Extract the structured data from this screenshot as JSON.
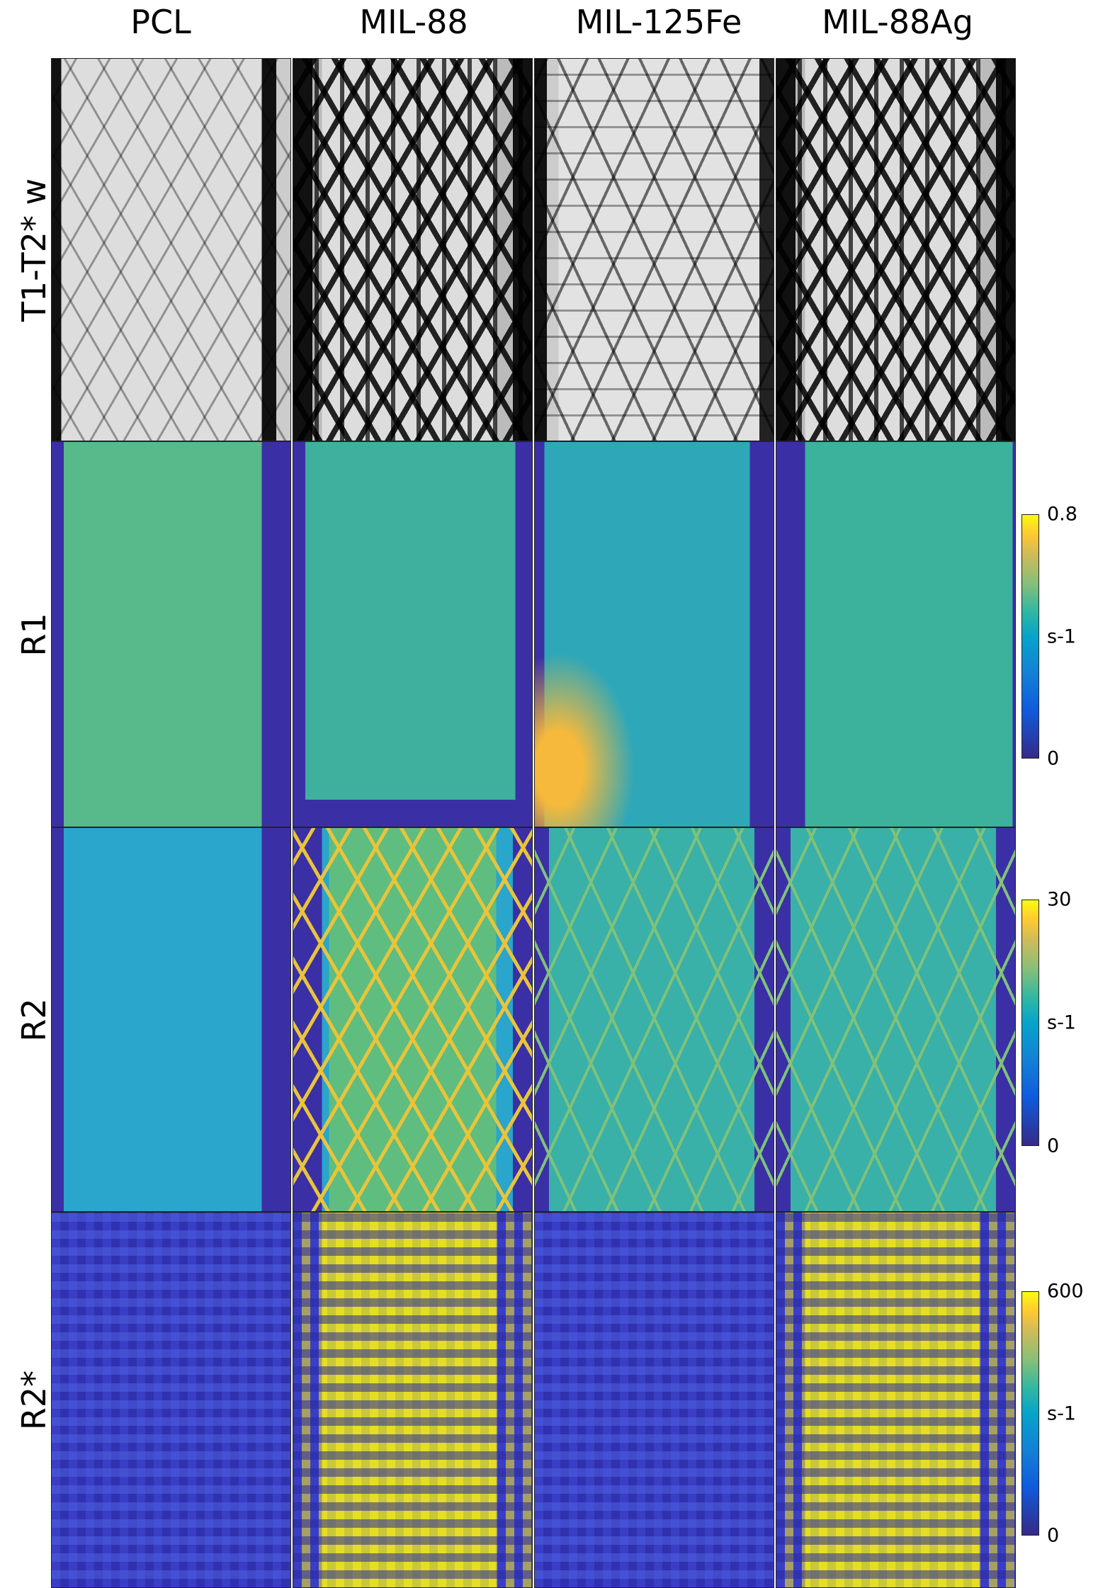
{
  "columns": [
    "PCL",
    "MIL-88",
    "MIL-125Fe",
    "MIL-88Ag"
  ],
  "rows": [
    "T1-T2* w",
    "R1",
    "R2",
    "R2*"
  ],
  "colorbars": [
    {
      "max": "0.8",
      "unit": "s-1",
      "min": "0"
    },
    {
      "max": "30",
      "unit": "s-1",
      "min": "0"
    },
    {
      "max": "600",
      "unit": "s-1",
      "min": "0"
    }
  ]
}
